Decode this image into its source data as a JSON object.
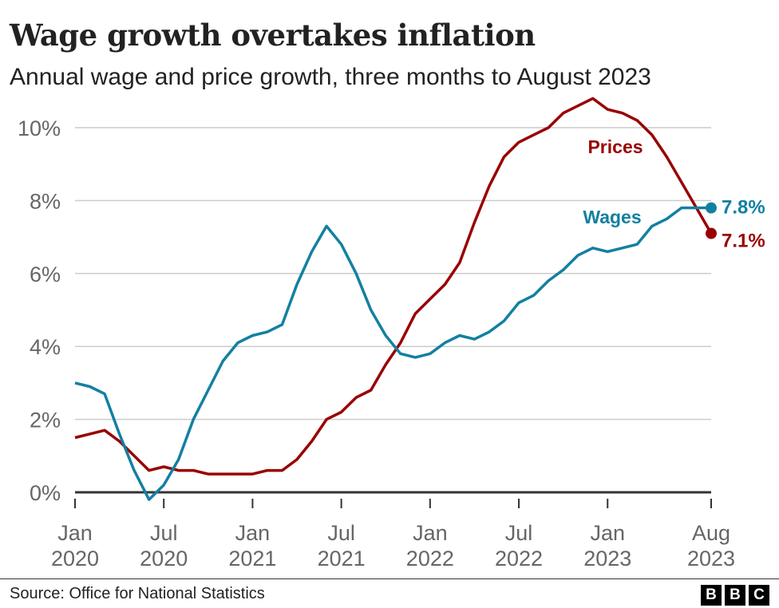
{
  "chart_data": {
    "type": "line",
    "title": "Wage growth overtakes inflation",
    "subtitle": "Annual wage and price growth, three months to August 2023",
    "x_start": "2020-01",
    "x_end": "2023-08",
    "x_ticks": [
      {
        "month": "2020-01",
        "line1": "Jan",
        "line2": "2020"
      },
      {
        "month": "2020-07",
        "line1": "Jul",
        "line2": "2020"
      },
      {
        "month": "2021-01",
        "line1": "Jan",
        "line2": "2021"
      },
      {
        "month": "2021-07",
        "line1": "Jul",
        "line2": "2021"
      },
      {
        "month": "2022-01",
        "line1": "Jan",
        "line2": "2022"
      },
      {
        "month": "2022-07",
        "line1": "Jul",
        "line2": "2022"
      },
      {
        "month": "2023-01",
        "line1": "Jan",
        "line2": "2023"
      },
      {
        "month": "2023-08",
        "line1": "Aug",
        "line2": "2023"
      }
    ],
    "y_ticks": [
      0,
      2,
      4,
      6,
      8,
      10
    ],
    "y_tick_labels": [
      "0%",
      "2%",
      "4%",
      "6%",
      "8%",
      "10%"
    ],
    "ylim": [
      -0.3,
      10.9
    ],
    "grid": "horizontal",
    "series": [
      {
        "name": "Wages",
        "color": "#1380A1",
        "end_label": "7.8%",
        "values": [
          3.0,
          2.9,
          2.7,
          1.6,
          0.6,
          -0.2,
          0.2,
          0.9,
          2.0,
          2.8,
          3.6,
          4.1,
          4.3,
          4.4,
          4.6,
          5.7,
          6.6,
          7.3,
          6.8,
          6.0,
          5.0,
          4.3,
          3.8,
          3.7,
          3.8,
          4.1,
          4.3,
          4.2,
          4.4,
          4.7,
          5.2,
          5.4,
          5.8,
          6.1,
          6.5,
          6.7,
          6.6,
          6.7,
          6.8,
          7.3,
          7.5,
          7.8,
          7.8,
          7.8
        ]
      },
      {
        "name": "Prices",
        "color": "#990000",
        "end_label": "7.1%",
        "values": [
          1.5,
          1.6,
          1.7,
          1.4,
          1.0,
          0.6,
          0.7,
          0.6,
          0.6,
          0.5,
          0.5,
          0.5,
          0.5,
          0.6,
          0.6,
          0.9,
          1.4,
          2.0,
          2.2,
          2.6,
          2.8,
          3.5,
          4.1,
          4.9,
          5.3,
          5.7,
          6.3,
          7.4,
          8.4,
          9.2,
          9.6,
          9.8,
          10.0,
          10.4,
          10.6,
          10.8,
          10.5,
          10.4,
          10.2,
          9.8,
          9.2,
          8.5,
          7.8,
          7.1
        ]
      }
    ]
  },
  "footer": {
    "source": "Source: Office for National Statistics",
    "logo": [
      "B",
      "B",
      "C"
    ]
  }
}
